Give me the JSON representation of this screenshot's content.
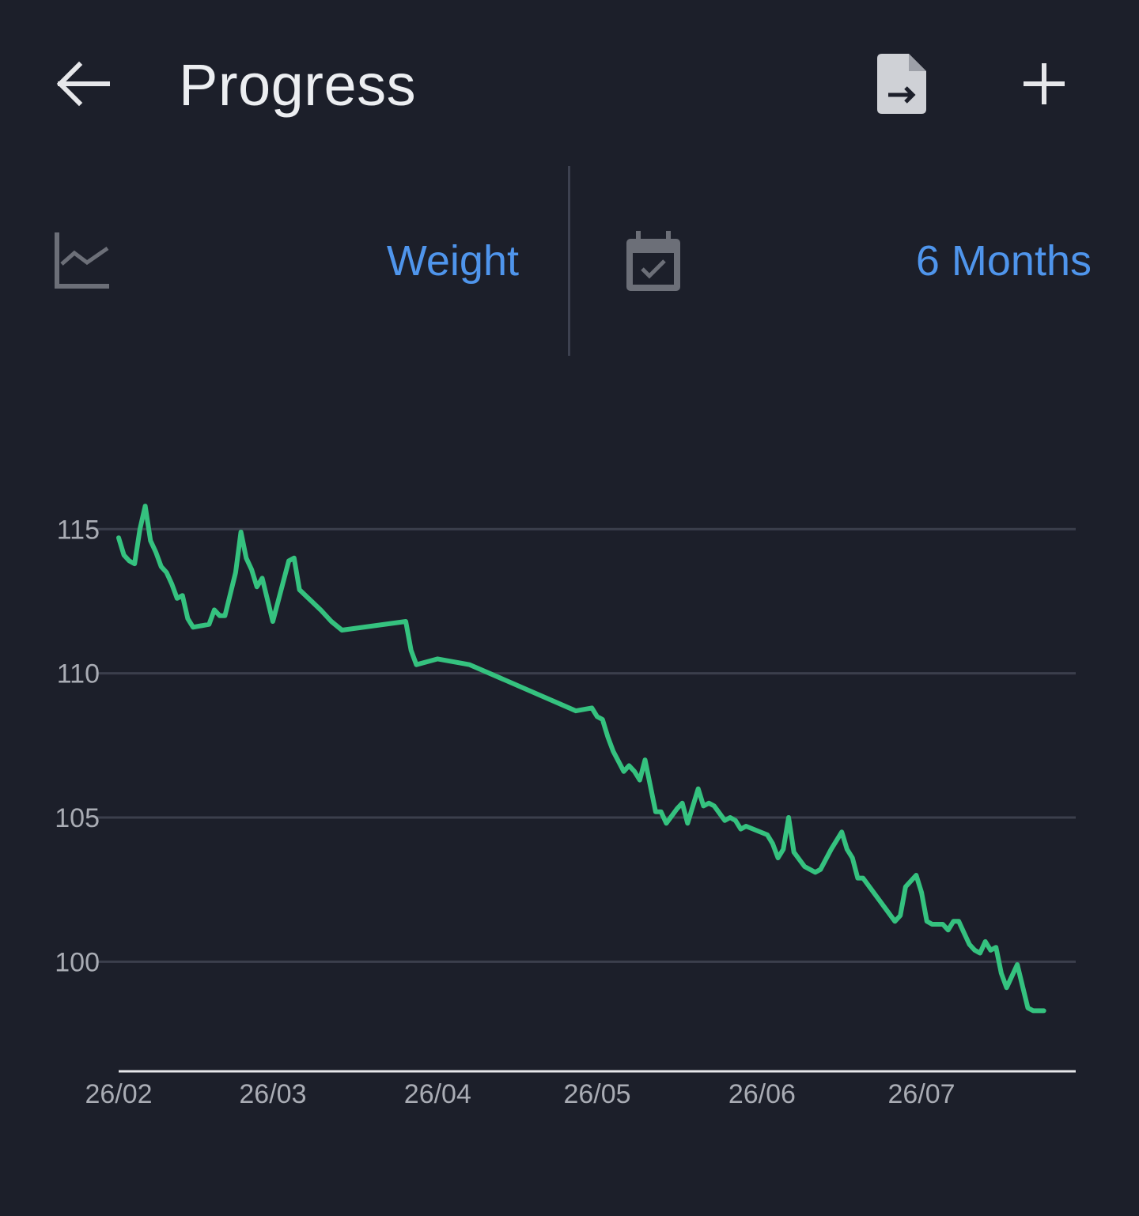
{
  "header": {
    "title": "Progress",
    "back_icon": "arrow-left-icon",
    "export_icon": "file-export-icon",
    "add_icon": "plus-icon"
  },
  "selectors": {
    "metric": {
      "icon": "line-chart-icon",
      "value": "Weight"
    },
    "range": {
      "icon": "calendar-check-icon",
      "value": "6 Months"
    }
  },
  "colors": {
    "background": "#1c1f2a",
    "accent": "#4f95ec",
    "line": "#35c27f",
    "grid": "#3b3f4c",
    "tick_text": "#a9acb4"
  },
  "chart_data": {
    "type": "line",
    "title": "",
    "xlabel": "",
    "ylabel": "",
    "ylim": [
      96.2,
      116.9
    ],
    "yticks": [
      100,
      105,
      110,
      115
    ],
    "xlim": [
      "2024-02-26",
      "2024-08-24"
    ],
    "xticks": [
      {
        "date": "2024-02-26",
        "label": "26/02"
      },
      {
        "date": "2024-03-26",
        "label": "26/03"
      },
      {
        "date": "2024-04-26",
        "label": "26/04"
      },
      {
        "date": "2024-05-26",
        "label": "26/05"
      },
      {
        "date": "2024-06-26",
        "label": "26/06"
      },
      {
        "date": "2024-07-26",
        "label": "26/07"
      }
    ],
    "grid": true,
    "series": [
      {
        "points": [
          [
            "2024-02-26",
            114.7
          ],
          [
            "2024-02-27",
            114.1
          ],
          [
            "2024-02-28",
            113.9
          ],
          [
            "2024-02-29",
            113.8
          ],
          [
            "2024-03-01",
            115.0
          ],
          [
            "2024-03-02",
            115.8
          ],
          [
            "2024-03-03",
            114.6
          ],
          [
            "2024-03-04",
            114.2
          ],
          [
            "2024-03-05",
            113.7
          ],
          [
            "2024-03-06",
            113.5
          ],
          [
            "2024-03-07",
            113.1
          ],
          [
            "2024-03-08",
            112.6
          ],
          [
            "2024-03-09",
            112.7
          ],
          [
            "2024-03-10",
            111.9
          ],
          [
            "2024-03-11",
            111.6
          ],
          [
            "2024-03-14",
            111.7
          ],
          [
            "2024-03-15",
            112.2
          ],
          [
            "2024-03-16",
            112.0
          ],
          [
            "2024-03-17",
            112.0
          ],
          [
            "2024-03-19",
            113.5
          ],
          [
            "2024-03-20",
            114.9
          ],
          [
            "2024-03-21",
            114.0
          ],
          [
            "2024-03-22",
            113.6
          ],
          [
            "2024-03-23",
            113.0
          ],
          [
            "2024-03-24",
            113.3
          ],
          [
            "2024-03-26",
            111.8
          ],
          [
            "2024-03-29",
            113.9
          ],
          [
            "2024-03-30",
            114.0
          ],
          [
            "2024-03-31",
            112.9
          ],
          [
            "2024-04-04",
            112.2
          ],
          [
            "2024-04-06",
            111.8
          ],
          [
            "2024-04-08",
            111.5
          ],
          [
            "2024-04-20",
            111.8
          ],
          [
            "2024-04-21",
            110.8
          ],
          [
            "2024-04-22",
            110.3
          ],
          [
            "2024-04-26",
            110.5
          ],
          [
            "2024-05-02",
            110.3
          ],
          [
            "2024-05-22",
            108.7
          ],
          [
            "2024-05-25",
            108.8
          ],
          [
            "2024-05-26",
            108.5
          ],
          [
            "2024-05-27",
            108.4
          ],
          [
            "2024-05-28",
            107.8
          ],
          [
            "2024-05-29",
            107.3
          ],
          [
            "2024-05-31",
            106.6
          ],
          [
            "2024-06-01",
            106.8
          ],
          [
            "2024-06-02",
            106.6
          ],
          [
            "2024-06-03",
            106.3
          ],
          [
            "2024-06-04",
            107.0
          ],
          [
            "2024-06-06",
            105.2
          ],
          [
            "2024-06-07",
            105.2
          ],
          [
            "2024-06-08",
            104.8
          ],
          [
            "2024-06-10",
            105.3
          ],
          [
            "2024-06-11",
            105.5
          ],
          [
            "2024-06-12",
            104.8
          ],
          [
            "2024-06-14",
            106.0
          ],
          [
            "2024-06-15",
            105.4
          ],
          [
            "2024-06-16",
            105.5
          ],
          [
            "2024-06-17",
            105.4
          ],
          [
            "2024-06-19",
            104.9
          ],
          [
            "2024-06-20",
            105.0
          ],
          [
            "2024-06-21",
            104.9
          ],
          [
            "2024-06-22",
            104.6
          ],
          [
            "2024-06-23",
            104.7
          ],
          [
            "2024-06-27",
            104.4
          ],
          [
            "2024-06-28",
            104.1
          ],
          [
            "2024-06-29",
            103.6
          ],
          [
            "2024-06-30",
            103.9
          ],
          [
            "2024-07-01",
            105.0
          ],
          [
            "2024-07-02",
            103.8
          ],
          [
            "2024-07-04",
            103.3
          ],
          [
            "2024-07-06",
            103.1
          ],
          [
            "2024-07-07",
            103.2
          ],
          [
            "2024-07-09",
            103.9
          ],
          [
            "2024-07-11",
            104.5
          ],
          [
            "2024-07-12",
            103.9
          ],
          [
            "2024-07-13",
            103.6
          ],
          [
            "2024-07-14",
            102.9
          ],
          [
            "2024-07-15",
            102.9
          ],
          [
            "2024-07-21",
            101.4
          ],
          [
            "2024-07-22",
            101.6
          ],
          [
            "2024-07-23",
            102.6
          ],
          [
            "2024-07-25",
            103.0
          ],
          [
            "2024-07-26",
            102.4
          ],
          [
            "2024-07-27",
            101.4
          ],
          [
            "2024-07-28",
            101.3
          ],
          [
            "2024-07-30",
            101.3
          ],
          [
            "2024-07-31",
            101.1
          ],
          [
            "2024-08-01",
            101.4
          ],
          [
            "2024-08-02",
            101.4
          ],
          [
            "2024-08-03",
            101.0
          ],
          [
            "2024-08-04",
            100.6
          ],
          [
            "2024-08-05",
            100.4
          ],
          [
            "2024-08-06",
            100.3
          ],
          [
            "2024-08-07",
            100.7
          ],
          [
            "2024-08-08",
            100.4
          ],
          [
            "2024-08-09",
            100.5
          ],
          [
            "2024-08-10",
            99.6
          ],
          [
            "2024-08-11",
            99.1
          ],
          [
            "2024-08-13",
            99.9
          ],
          [
            "2024-08-15",
            98.4
          ],
          [
            "2024-08-16",
            98.3
          ],
          [
            "2024-08-18",
            98.3
          ]
        ]
      }
    ]
  }
}
